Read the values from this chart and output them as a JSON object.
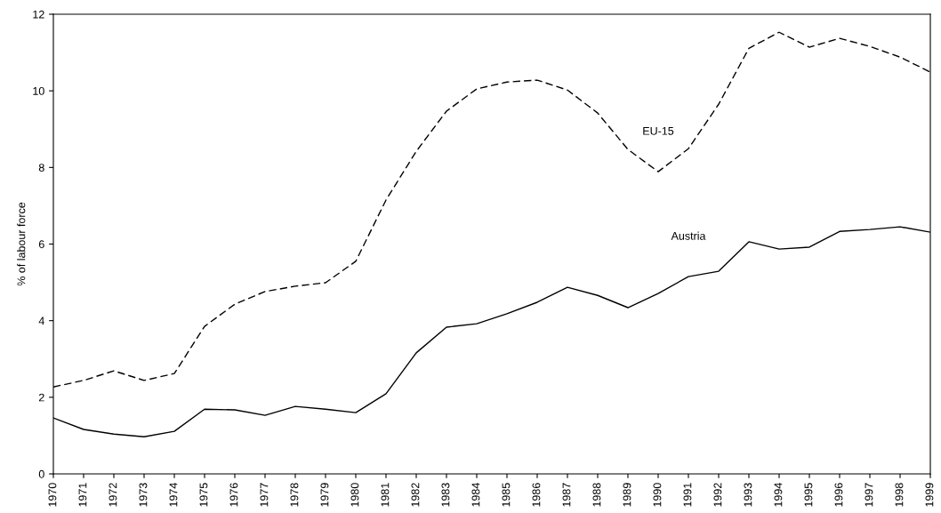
{
  "chart_data": {
    "type": "line",
    "ylabel": "% of labour force",
    "x": [
      1970,
      1971,
      1972,
      1973,
      1974,
      1975,
      1976,
      1977,
      1978,
      1979,
      1980,
      1981,
      1982,
      1983,
      1984,
      1985,
      1986,
      1987,
      1988,
      1989,
      1990,
      1991,
      1992,
      1993,
      1994,
      1995,
      1996,
      1997,
      1998,
      1999
    ],
    "series": [
      {
        "name": "EU-15",
        "color": "#000000",
        "line_style": "dashed",
        "values": [
          2.27,
          2.44,
          2.69,
          2.44,
          2.62,
          3.85,
          4.43,
          4.76,
          4.9,
          4.99,
          5.55,
          7.15,
          8.42,
          9.47,
          10.05,
          10.23,
          10.28,
          10.02,
          9.42,
          8.47,
          7.89,
          8.49,
          9.65,
          11.11,
          11.53,
          11.14,
          11.37,
          11.16,
          10.88,
          10.49
        ]
      },
      {
        "name": "Austria",
        "color": "#000000",
        "line_style": "solid",
        "values": [
          1.46,
          1.16,
          1.04,
          0.97,
          1.11,
          1.69,
          1.67,
          1.53,
          1.76,
          1.69,
          1.6,
          2.09,
          3.16,
          3.83,
          3.92,
          4.18,
          4.48,
          4.87,
          4.66,
          4.34,
          4.71,
          5.15,
          5.29,
          6.06,
          5.87,
          5.92,
          6.33,
          6.38,
          6.45,
          6.31
        ]
      }
    ],
    "xlim": [
      1970,
      1999
    ],
    "xticks": [
      1970,
      1971,
      1972,
      1973,
      1974,
      1975,
      1976,
      1977,
      1978,
      1979,
      1980,
      1981,
      1982,
      1983,
      1984,
      1985,
      1986,
      1987,
      1988,
      1989,
      1990,
      1991,
      1992,
      1993,
      1994,
      1995,
      1996,
      1997,
      1998,
      1999
    ],
    "ylim": [
      0,
      12
    ],
    "yticks": [
      0,
      2,
      4,
      6,
      8,
      10,
      12
    ],
    "grid": false,
    "legend": false,
    "marker": "none"
  }
}
